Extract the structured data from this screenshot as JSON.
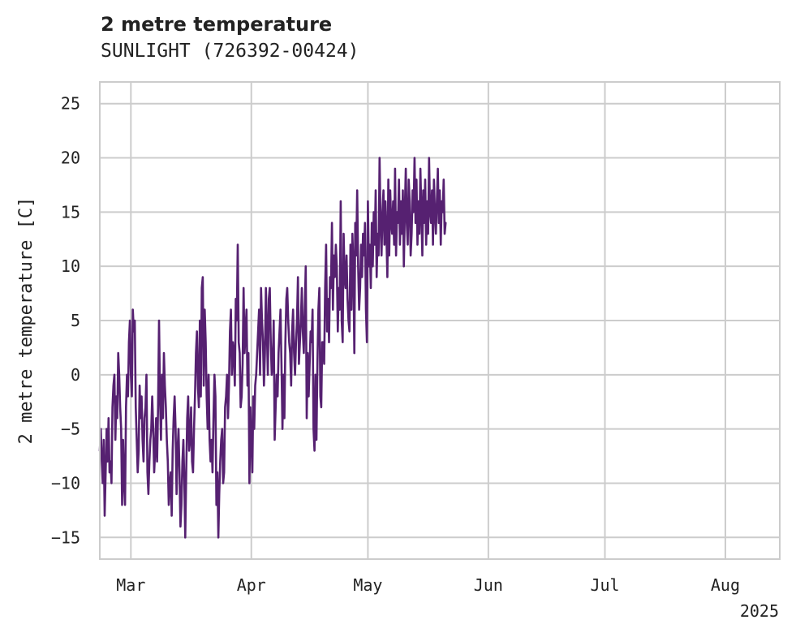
{
  "chart_data": {
    "type": "line",
    "title": "2 metre temperature",
    "subtitle": "SUNLIGHT (726392-00424)",
    "xlabel": "",
    "ylabel": "2 metre temperature [C]",
    "ylim": [
      -17,
      27
    ],
    "xlim_days": [
      -8,
      167
    ],
    "yticks": [
      -15,
      -10,
      -5,
      0,
      5,
      10,
      15,
      20,
      25
    ],
    "ytick_labels": [
      "−15",
      "−10",
      "−5",
      "0",
      "5",
      "10",
      "15",
      "20",
      "25"
    ],
    "xticks": [
      {
        "day": 0,
        "label": "Mar"
      },
      {
        "day": 31,
        "label": "Apr"
      },
      {
        "day": 61,
        "label": "May"
      },
      {
        "day": 92,
        "label": "Jun"
      },
      {
        "day": 122,
        "label": "Jul"
      },
      {
        "day": 153,
        "label": "Aug"
      }
    ],
    "year_label": "2025",
    "grid": true,
    "series": [
      {
        "name": "2 metre temperature",
        "color": "#562171",
        "x_start_day": -8,
        "x_step_days": 0.25,
        "values": [
          -7,
          -5,
          -8,
          -10,
          -6,
          -13,
          -9,
          -5,
          -8,
          -4,
          -9,
          -8,
          -10,
          -3,
          -1,
          0,
          -6,
          -2,
          -4,
          2,
          0,
          -3,
          -5,
          -12,
          -6,
          -10,
          -12,
          -3,
          0,
          -2,
          3,
          5,
          0,
          -2,
          6,
          4,
          5,
          -3,
          -6,
          -9,
          -7,
          -1,
          -4,
          -2,
          -6,
          -8,
          -4,
          -3,
          0,
          -9,
          -11,
          -8,
          -6,
          -5,
          -2,
          -5,
          -9,
          -7,
          -4,
          -8,
          -3,
          5,
          -2,
          -6,
          0,
          -4,
          2,
          -1,
          -3,
          -6,
          -8,
          -12,
          -10,
          -9,
          -13,
          -7,
          -4,
          -2,
          -5,
          -11,
          -7,
          -5,
          -9,
          -14,
          -12,
          -8,
          -6,
          -10,
          -15,
          -9,
          -4,
          -2,
          -7,
          -6,
          -3,
          -8,
          -9,
          -5,
          -2,
          2,
          4,
          -1,
          -3,
          5,
          -2,
          8,
          9,
          -1,
          6,
          3,
          -2,
          -5,
          0,
          -6,
          -8,
          -6,
          -9,
          -4,
          0,
          -2,
          -12,
          -9,
          -15,
          -11,
          -8,
          -6,
          -5,
          -10,
          -9,
          -3,
          -2,
          0,
          -4,
          -1,
          4,
          6,
          0,
          3,
          2,
          -1,
          7,
          5,
          12,
          3,
          2,
          -3,
          -2,
          1,
          8,
          2,
          4,
          6,
          -1,
          2,
          -10,
          -3,
          -6,
          -9,
          -2,
          -5,
          -1,
          0,
          2,
          4,
          6,
          0,
          8,
          5,
          3,
          -1,
          2,
          8,
          4,
          0,
          7,
          8,
          3,
          0,
          1,
          5,
          -6,
          -3,
          0,
          -2,
          2,
          4,
          6,
          1,
          -5,
          0,
          -4,
          3,
          7,
          8,
          5,
          3,
          2,
          -1,
          4,
          6,
          2,
          0,
          3,
          5,
          9,
          1,
          3,
          5,
          8,
          4,
          2,
          6,
          10,
          -4,
          2,
          -2,
          1,
          4,
          3,
          6,
          -5,
          -7,
          0,
          -6,
          1,
          6,
          8,
          -2,
          -3,
          3,
          3,
          1,
          8,
          12,
          4,
          7,
          3,
          9,
          8,
          14,
          6,
          11,
          9,
          12,
          10,
          4,
          8,
          6,
          16,
          5,
          3,
          13,
          9,
          8,
          11,
          7,
          5,
          4,
          12,
          6,
          13,
          10,
          2,
          14,
          11,
          17,
          10,
          6,
          8,
          12,
          9,
          13,
          11,
          14,
          6,
          3,
          16,
          10,
          12,
          8,
          14,
          10,
          15,
          12,
          17,
          9,
          13,
          11,
          20,
          14,
          11,
          15,
          17,
          12,
          16,
          13,
          9,
          18,
          11,
          17,
          14,
          13,
          16,
          12,
          19,
          11,
          15,
          14,
          18,
          12,
          16,
          13,
          17,
          10,
          15,
          19,
          14,
          12,
          18,
          16,
          11,
          13,
          17,
          15,
          20,
          14,
          18,
          12,
          16,
          13,
          19,
          15,
          11,
          17,
          14,
          18,
          12,
          16,
          13,
          20,
          15,
          14,
          17,
          12,
          18,
          15,
          13,
          16,
          19,
          14,
          17,
          12,
          16,
          15,
          18,
          13,
          14
        ]
      }
    ]
  }
}
